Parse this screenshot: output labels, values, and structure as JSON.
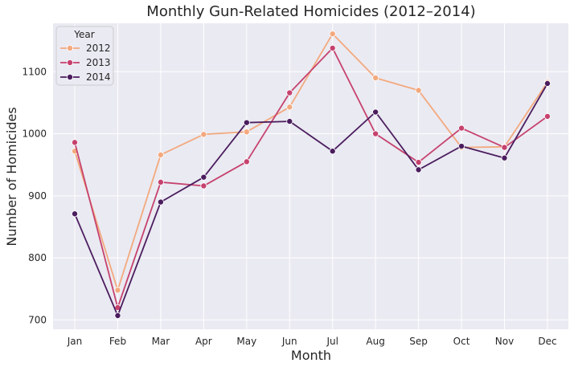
{
  "chart_data": {
    "type": "line",
    "title": "Monthly Gun-Related Homicides (2012–2014)",
    "xlabel": "Month",
    "ylabel": "Number of Homicides",
    "categories": [
      "Jan",
      "Feb",
      "Mar",
      "Apr",
      "May",
      "Jun",
      "Jul",
      "Aug",
      "Sep",
      "Oct",
      "Nov",
      "Dec"
    ],
    "ylim": [
      685,
      1178
    ],
    "yticks": [
      700,
      800,
      900,
      1000,
      1100
    ],
    "grid": true,
    "legend": {
      "title": "Year",
      "placement": "top-left"
    },
    "series": [
      {
        "name": "2012",
        "color": "#f3a97e",
        "values": [
          972,
          748,
          966,
          999,
          1003,
          1043,
          1161,
          1090,
          1070,
          978,
          979,
          1083
        ]
      },
      {
        "name": "2013",
        "color": "#c6426e",
        "values": [
          986,
          720,
          922,
          916,
          955,
          1066,
          1138,
          1000,
          954,
          1009,
          978,
          1028
        ]
      },
      {
        "name": "2014",
        "color": "#542788",
        "values": [
          871,
          707,
          890,
          930,
          1018,
          1020,
          972,
          1035,
          942,
          980,
          961,
          1081
        ]
      }
    ]
  },
  "colors": {
    "plot_background": "#eaeaf2",
    "grid": "#ffffff",
    "series_2014": "#4b1d5e"
  }
}
